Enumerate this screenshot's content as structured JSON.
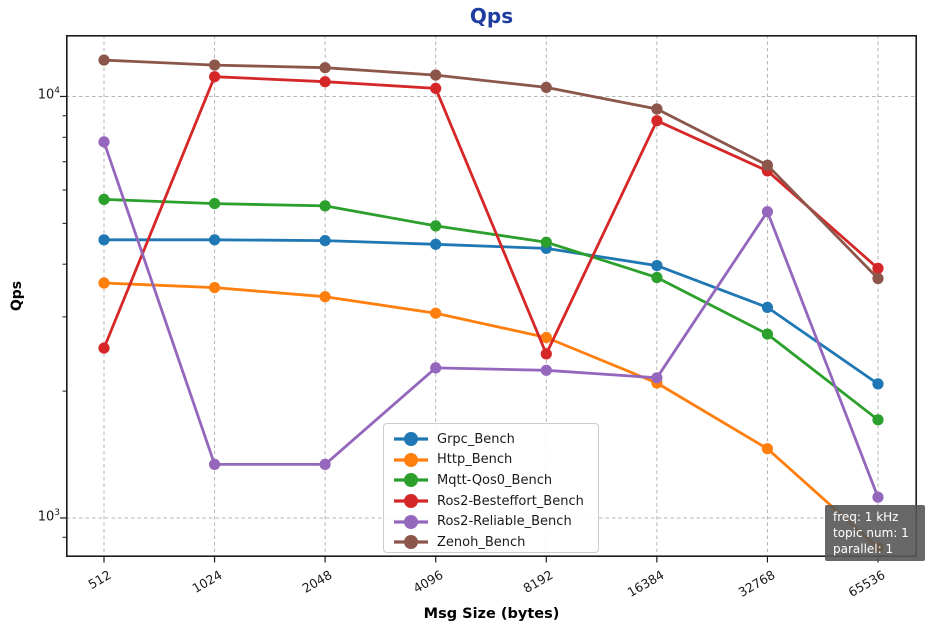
{
  "chart": {
    "title": "Qps",
    "title_color": "#1f3d9e",
    "xlabel": "Msg Size (bytes)",
    "ylabel": "Qps"
  },
  "chart_data": {
    "type": "line",
    "title": "Qps",
    "xlabel": "Msg Size (bytes)",
    "ylabel": "Qps",
    "x_scale": "log2-categorical",
    "y_scale": "log10",
    "grid": "dashed",
    "legend_position": "lower-center",
    "categories": [
      "512",
      "1024",
      "2048",
      "4096",
      "8192",
      "16384",
      "32768",
      "65536"
    ],
    "ylim": [
      808,
      13990
    ],
    "y_major_ticks": [
      {
        "value": 10000,
        "base": "10",
        "exp": "4"
      },
      {
        "value": 1000,
        "base": "10",
        "exp": "3"
      }
    ],
    "y_minor_ticks": [
      900,
      2000,
      3000,
      4000,
      5000,
      6000,
      7000,
      8000,
      9000
    ],
    "series": [
      {
        "name": "Grpc_Bench",
        "color": "#1f77b4",
        "values": [
          4570,
          4570,
          4550,
          4460,
          4360,
          3970,
          3160,
          2080
        ]
      },
      {
        "name": "Http_Bench",
        "color": "#ff7f0e",
        "values": [
          3610,
          3520,
          3350,
          3060,
          2680,
          2090,
          1460,
          850
        ]
      },
      {
        "name": "Mqtt-Qos0_Bench",
        "color": "#2ca02c",
        "values": [
          5700,
          5570,
          5500,
          4930,
          4510,
          3720,
          2730,
          1710
        ]
      },
      {
        "name": "Ros2-Besteffort_Bench",
        "color": "#d62728",
        "values": [
          2530,
          11140,
          10840,
          10450,
          2450,
          8760,
          6660,
          3910
        ]
      },
      {
        "name": "Ros2-Reliable_Bench",
        "color": "#9467bd",
        "values": [
          7800,
          1340,
          1340,
          2270,
          2240,
          2150,
          5330,
          1120
        ]
      },
      {
        "name": "Zenoh_Bench",
        "color": "#8c564b",
        "values": [
          12200,
          11870,
          11700,
          11240,
          10510,
          9340,
          6870,
          3700
        ]
      }
    ]
  },
  "annotation": {
    "lines": [
      "freq: 1 kHz",
      "topic num: 1",
      "parallel: 1"
    ]
  }
}
